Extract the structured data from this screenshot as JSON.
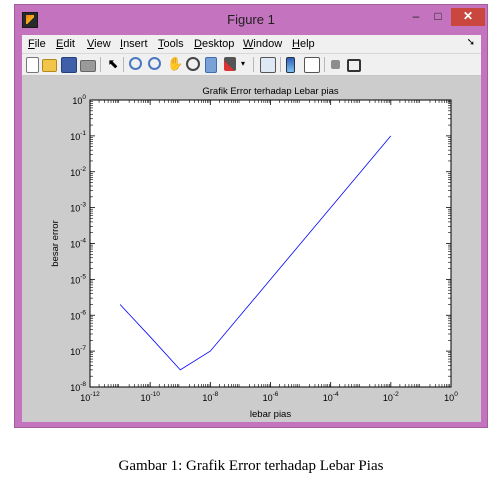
{
  "window": {
    "title": "Figure 1",
    "close_glyph": "✕",
    "min_glyph": "–",
    "max_glyph": "□"
  },
  "menu": [
    "File",
    "Edit",
    "View",
    "Insert",
    "Tools",
    "Desktop",
    "Window",
    "Help"
  ],
  "toolbar_icons": [
    "new-figure-icon",
    "open-file-icon",
    "save-icon",
    "print-icon",
    "pointer-icon",
    "zoom-in-icon",
    "zoom-out-icon",
    "pan-icon",
    "rotate-icon",
    "data-cursor-icon",
    "brush-icon",
    "dropdown-arrow-icon",
    "link-icon",
    "colorbar-icon",
    "legend-icon",
    "hide-plot-tools-icon",
    "show-plot-tools-icon"
  ],
  "chart_data": {
    "type": "line",
    "title": "Grafik Error terhadap Lebar pias",
    "xlabel": "lebar pias",
    "ylabel": "besar error",
    "xscale": "log",
    "yscale": "log",
    "xlim": [
      1e-12,
      1
    ],
    "ylim": [
      1e-08,
      1
    ],
    "xticks": [
      1e-12,
      1e-10,
      1e-08,
      1e-06,
      0.0001,
      0.01,
      1
    ],
    "yticks": [
      1e-08,
      1e-07,
      1e-06,
      1e-05,
      0.0001,
      0.001,
      0.01,
      0.1,
      1
    ],
    "grid": false,
    "series": [
      {
        "color": "#0000ff",
        "x": [
          1e-11,
          1e-10,
          1e-09,
          1e-08,
          1e-07,
          1e-06,
          1e-05,
          0.0001,
          0.001,
          0.01
        ],
        "y": [
          2e-06,
          2.5e-07,
          3e-08,
          1e-07,
          1e-06,
          1e-05,
          0.0001,
          0.001,
          0.01,
          0.1
        ]
      }
    ]
  },
  "caption": "Gambar 1: Grafik Error terhadap Lebar Pias"
}
